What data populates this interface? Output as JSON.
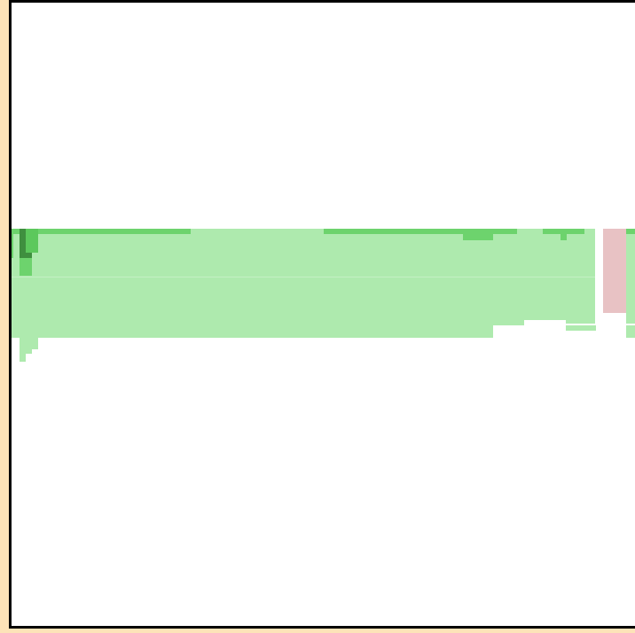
{
  "colors": {
    "background": "#ffffff",
    "border": "#000000",
    "outer_margin": "#fde3b8",
    "light_green": "#aeeaae",
    "mid_green": "#6dd36d",
    "green": "#5cc85c",
    "dark_green": "#3f8f3f",
    "pink": "#e8c2c4"
  }
}
